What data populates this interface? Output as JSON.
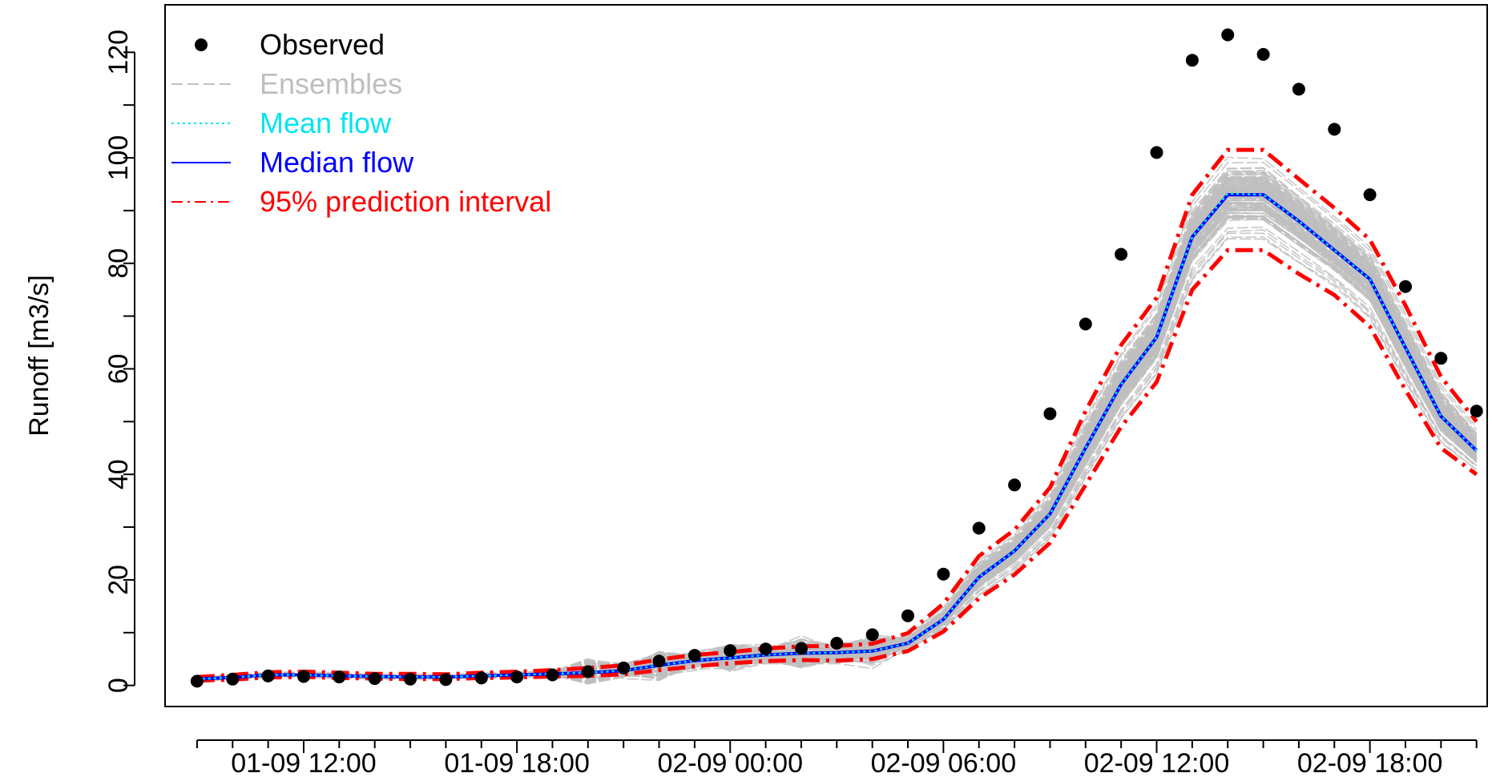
{
  "chart_data": {
    "type": "line",
    "title": "",
    "xlabel": "",
    "ylabel": "Runoff [m3/s]",
    "x_start": "01-09 09:00",
    "x_step_hours": 1,
    "xlim_hours": [
      -0.9,
      36.3
    ],
    "ylim": [
      -4,
      129
    ],
    "xticks": [
      {
        "label": "01-09 12:00",
        "h": 3
      },
      {
        "label": "01-09 18:00",
        "h": 9
      },
      {
        "label": "02-09 00:00",
        "h": 15
      },
      {
        "label": "02-09 06:00",
        "h": 21
      },
      {
        "label": "02-09 12:00",
        "h": 27
      },
      {
        "label": "02-09 18:00",
        "h": 33
      }
    ],
    "yticks": [
      0,
      20,
      40,
      60,
      80,
      100,
      120
    ],
    "legend": {
      "position": "top-left",
      "entries": [
        {
          "label": "Observed",
          "color": "#000000",
          "style": "point"
        },
        {
          "label": "Ensembles",
          "color": "#bebebe",
          "style": "dashed"
        },
        {
          "label": "Mean flow",
          "color": "#00e5ee",
          "style": "dotted"
        },
        {
          "label": "Median flow",
          "color": "#0000ff",
          "style": "solid"
        },
        {
          "label": "95% prediction interval",
          "color": "#ff0000",
          "style": "dotdash"
        }
      ]
    },
    "series": [
      {
        "name": "Observed",
        "values": [
          0.8,
          1.2,
          1.8,
          1.7,
          1.6,
          1.3,
          1.2,
          1.1,
          1.4,
          1.6,
          2.0,
          2.6,
          3.3,
          4.6,
          5.7,
          6.6,
          6.9,
          7.0,
          8.0,
          9.6,
          13.2,
          21.1,
          29.8,
          38.0,
          51.5,
          68.5,
          81.7,
          101.0,
          118.5,
          123.3,
          119.6,
          113.0,
          105.4,
          93.0,
          75.6,
          62.0,
          52.0
        ]
      },
      {
        "name": "Ensembles",
        "values": []
      },
      {
        "name": "Mean flow",
        "values": [
          1.2,
          1.5,
          2.0,
          2.0,
          1.8,
          1.7,
          1.6,
          1.6,
          1.8,
          2.0,
          2.2,
          2.4,
          2.8,
          3.8,
          4.7,
          5.2,
          5.8,
          6.1,
          6.2,
          6.5,
          8.0,
          12.5,
          20.5,
          25.5,
          32.5,
          45.0,
          57.0,
          66.0,
          85.0,
          93.2,
          93.0,
          88.0,
          82.5,
          77.0,
          64.0,
          51.0,
          44.5
        ]
      },
      {
        "name": "Median flow",
        "values": [
          1.2,
          1.5,
          2.0,
          2.0,
          1.8,
          1.7,
          1.6,
          1.6,
          1.8,
          2.0,
          2.2,
          2.4,
          2.8,
          3.8,
          4.7,
          5.2,
          5.8,
          6.1,
          6.2,
          6.5,
          8.0,
          12.5,
          20.5,
          25.5,
          32.5,
          45.0,
          57.0,
          66.0,
          85.0,
          93.0,
          93.0,
          88.0,
          82.5,
          77.0,
          64.0,
          51.0,
          44.5
        ]
      },
      {
        "name": "95% upper",
        "values": [
          1.6,
          2.0,
          2.5,
          2.6,
          2.4,
          2.2,
          2.2,
          2.1,
          2.4,
          2.6,
          2.9,
          3.3,
          3.8,
          4.9,
          5.8,
          6.3,
          7.0,
          7.4,
          7.5,
          7.9,
          9.9,
          15.5,
          24.5,
          29.5,
          37.5,
          52.0,
          64.5,
          73.5,
          93.0,
          101.5,
          101.5,
          96.0,
          90.5,
          84.5,
          72.0,
          58.5,
          50.0
        ]
      },
      {
        "name": "95% lower",
        "values": [
          0.9,
          1.1,
          1.5,
          1.6,
          1.4,
          1.3,
          1.2,
          1.2,
          1.4,
          1.5,
          1.7,
          1.8,
          2.1,
          2.9,
          3.6,
          4.2,
          4.6,
          4.8,
          4.7,
          5.0,
          6.5,
          10.2,
          16.5,
          21.0,
          27.0,
          38.0,
          49.0,
          57.5,
          75.0,
          82.5,
          82.5,
          78.0,
          74.0,
          68.0,
          56.0,
          45.0,
          40.0
        ]
      }
    ]
  }
}
